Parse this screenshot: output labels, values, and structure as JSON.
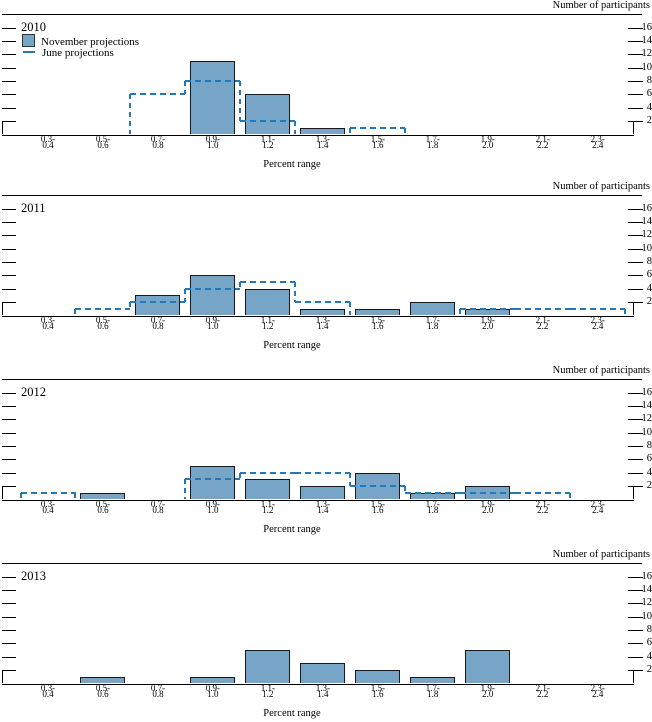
{
  "page": {
    "y_axis_title": "Number of participants",
    "x_axis_title": "Percent range"
  },
  "legend": {
    "november_label": "November projections",
    "june_label": "June projections"
  },
  "colors": {
    "bar_fill": "#76A5C7",
    "bar_border": "#1a1a1a",
    "june_dash": "#2479B5",
    "axis": "#000000"
  },
  "chart_data": [
    {
      "type": "bar",
      "title": "2010",
      "xlabel": "Percent range",
      "ylabel": "Number of participants",
      "ylim": [
        0,
        16
      ],
      "y_ticks": [
        2,
        4,
        6,
        8,
        10,
        12,
        14,
        16
      ],
      "categories": [
        "0.3-0.4",
        "0.5-0.6",
        "0.7-0.8",
        "0.9-1.0",
        "1.1-1.2",
        "1.3-1.4",
        "1.5-1.6",
        "1.7-1.8",
        "1.9-2.0",
        "2.1-2.2",
        "2.3-2.4"
      ],
      "series": [
        {
          "name": "November projections",
          "style": "filled-bar",
          "values": [
            0,
            0,
            0,
            11,
            6,
            1,
            0,
            0,
            0,
            0,
            0
          ]
        },
        {
          "name": "June projections",
          "style": "dashed-step-outline",
          "values": [
            0,
            0,
            6,
            8,
            2,
            0,
            1,
            0,
            0,
            0,
            0
          ]
        }
      ]
    },
    {
      "type": "bar",
      "title": "2011",
      "xlabel": "Percent range",
      "ylabel": "Number of participants",
      "ylim": [
        0,
        16
      ],
      "y_ticks": [
        2,
        4,
        6,
        8,
        10,
        12,
        14,
        16
      ],
      "categories": [
        "0.3-0.4",
        "0.5-0.6",
        "0.7-0.8",
        "0.9-1.0",
        "1.1-1.2",
        "1.3-1.4",
        "1.5-1.6",
        "1.7-1.8",
        "1.9-2.0",
        "2.1-2.2",
        "2.3-2.4"
      ],
      "series": [
        {
          "name": "November projections",
          "style": "filled-bar",
          "values": [
            0,
            0,
            3,
            6,
            4,
            1,
            1,
            2,
            1,
            0,
            0
          ]
        },
        {
          "name": "June projections",
          "style": "dashed-step-outline",
          "values": [
            0,
            1,
            2,
            4,
            5,
            2,
            0,
            0,
            1,
            1,
            1
          ]
        }
      ]
    },
    {
      "type": "bar",
      "title": "2012",
      "xlabel": "Percent range",
      "ylabel": "Number of participants",
      "ylim": [
        0,
        16
      ],
      "y_ticks": [
        2,
        4,
        6,
        8,
        10,
        12,
        14,
        16
      ],
      "categories": [
        "0.3-0.4",
        "0.5-0.6",
        "0.7-0.8",
        "0.9-1.0",
        "1.1-1.2",
        "1.3-1.4",
        "1.5-1.6",
        "1.7-1.8",
        "1.9-2.0",
        "2.1-2.2",
        "2.3-2.4"
      ],
      "series": [
        {
          "name": "November projections",
          "style": "filled-bar",
          "values": [
            0,
            1,
            0,
            5,
            3,
            2,
            4,
            1,
            2,
            0,
            0
          ]
        },
        {
          "name": "June projections",
          "style": "dashed-step-outline",
          "values": [
            1,
            0,
            0,
            3,
            4,
            4,
            2,
            1,
            1,
            1,
            0
          ]
        }
      ]
    },
    {
      "type": "bar",
      "title": "2013",
      "xlabel": "Percent range",
      "ylabel": "Number of participants",
      "ylim": [
        0,
        16
      ],
      "y_ticks": [
        2,
        4,
        6,
        8,
        10,
        12,
        14,
        16
      ],
      "categories": [
        "0.3-0.4",
        "0.5-0.6",
        "0.7-0.8",
        "0.9-1.0",
        "1.1-1.2",
        "1.3-1.4",
        "1.5-1.6",
        "1.7-1.8",
        "1.9-2.0",
        "2.1-2.2",
        "2.3-2.4"
      ],
      "series": [
        {
          "name": "November projections",
          "style": "filled-bar",
          "values": [
            0,
            1,
            0,
            1,
            5,
            3,
            2,
            1,
            5,
            0,
            0
          ]
        }
      ]
    }
  ]
}
